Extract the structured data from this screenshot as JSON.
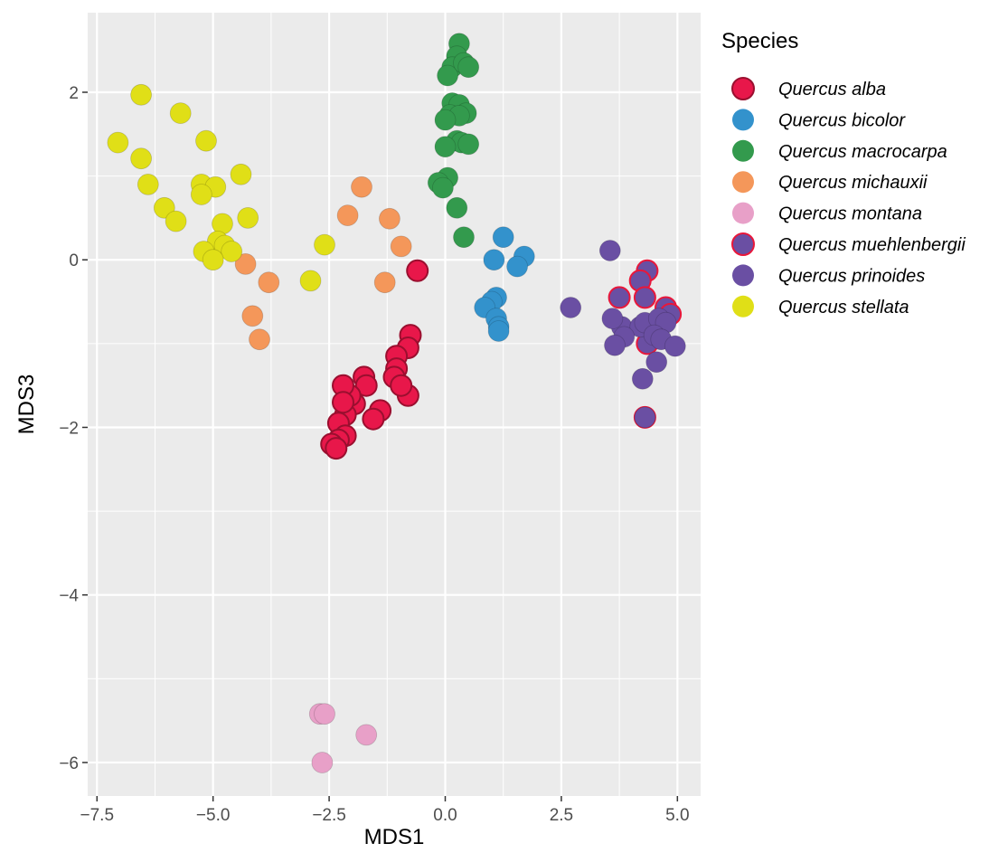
{
  "chart_data": {
    "type": "scatter",
    "xlabel": "MDS1",
    "ylabel": "MDS3",
    "xlim": [
      -7.7,
      5.5
    ],
    "ylim": [
      -6.4,
      2.95
    ],
    "x_ticks": [
      -7.5,
      -5.0,
      -2.5,
      0.0,
      2.5,
      5.0
    ],
    "x_tick_labels": [
      "−7.5",
      "−5.0",
      "−2.5",
      "0.0",
      "2.5",
      "5.0"
    ],
    "y_ticks": [
      2,
      0,
      -2,
      -4,
      -6
    ],
    "y_tick_labels": [
      "2",
      "0",
      "−2",
      "−4",
      "−6"
    ],
    "grid": true,
    "legend_title": "Species",
    "legend_position": "right",
    "series": [
      {
        "name": "Quercus alba",
        "color": "#e8174a",
        "outline": "#9a0f2f",
        "points": [
          [
            -0.6,
            -0.13
          ],
          [
            -0.75,
            -0.9
          ],
          [
            -0.8,
            -1.05
          ],
          [
            -1.05,
            -1.15
          ],
          [
            -1.05,
            -1.3
          ],
          [
            -1.1,
            -1.4
          ],
          [
            -0.8,
            -1.62
          ],
          [
            -0.95,
            -1.5
          ],
          [
            -1.4,
            -1.8
          ],
          [
            -1.55,
            -1.9
          ],
          [
            -1.75,
            -1.4
          ],
          [
            -1.7,
            -1.5
          ],
          [
            -1.95,
            -1.72
          ],
          [
            -2.05,
            -1.62
          ],
          [
            -2.15,
            -1.85
          ],
          [
            -2.2,
            -1.5
          ],
          [
            -2.2,
            -1.7
          ],
          [
            -2.3,
            -1.95
          ],
          [
            -2.15,
            -2.1
          ],
          [
            -2.3,
            -2.15
          ],
          [
            -2.45,
            -2.2
          ],
          [
            -2.35,
            -2.25
          ]
        ]
      },
      {
        "name": "Quercus bicolor",
        "color": "#3392cc",
        "points": [
          [
            1.25,
            0.27
          ],
          [
            1.7,
            0.04
          ],
          [
            1.55,
            -0.08
          ],
          [
            1.05,
            0.0
          ],
          [
            1.1,
            -0.45
          ],
          [
            1.0,
            -0.5
          ],
          [
            0.85,
            -0.57
          ],
          [
            1.1,
            -0.7
          ],
          [
            1.15,
            -0.8
          ],
          [
            1.15,
            -0.85
          ]
        ]
      },
      {
        "name": "Quercus macrocarpa",
        "color": "#339a4d",
        "points": [
          [
            0.3,
            2.58
          ],
          [
            0.25,
            2.43
          ],
          [
            0.15,
            2.3
          ],
          [
            0.05,
            2.2
          ],
          [
            0.4,
            2.35
          ],
          [
            0.5,
            2.3
          ],
          [
            0.15,
            1.87
          ],
          [
            0.3,
            1.85
          ],
          [
            0.45,
            1.75
          ],
          [
            0.1,
            1.73
          ],
          [
            0.3,
            1.72
          ],
          [
            0.0,
            1.67
          ],
          [
            0.25,
            1.42
          ],
          [
            0.35,
            1.4
          ],
          [
            0.5,
            1.38
          ],
          [
            0.0,
            1.35
          ],
          [
            0.05,
            0.98
          ],
          [
            -0.15,
            0.92
          ],
          [
            -0.05,
            0.86
          ],
          [
            0.25,
            0.62
          ],
          [
            0.4,
            0.27
          ]
        ]
      },
      {
        "name": "Quercus michauxii",
        "color": "#f4975a",
        "points": [
          [
            -1.8,
            0.87
          ],
          [
            -2.1,
            0.53
          ],
          [
            -1.2,
            0.49
          ],
          [
            -0.95,
            0.16
          ],
          [
            -1.3,
            -0.27
          ],
          [
            -4.3,
            -0.05
          ],
          [
            -3.8,
            -0.27
          ],
          [
            -4.15,
            -0.67
          ],
          [
            -4.0,
            -0.95
          ]
        ]
      },
      {
        "name": "Quercus montana",
        "color": "#e8a0c8",
        "points": [
          [
            -2.7,
            -5.42
          ],
          [
            -2.6,
            -5.42
          ],
          [
            -1.7,
            -5.67
          ],
          [
            -2.65,
            -6.0
          ]
        ]
      },
      {
        "name": "Quercus muehlenbergii",
        "color": "#6a4fa3",
        "outline": "#e8173a",
        "points": [
          [
            4.35,
            -0.13
          ],
          [
            4.2,
            -0.25
          ],
          [
            4.75,
            -0.57
          ],
          [
            3.75,
            -0.45
          ],
          [
            4.3,
            -0.45
          ],
          [
            4.85,
            -0.65
          ],
          [
            4.45,
            -0.9
          ],
          [
            4.35,
            -1.0
          ],
          [
            4.3,
            -1.88
          ]
        ]
      },
      {
        "name": "Quercus prinoides",
        "color": "#6a4fa3",
        "points": [
          [
            3.55,
            0.11
          ],
          [
            2.7,
            -0.57
          ],
          [
            3.8,
            -0.8
          ],
          [
            3.6,
            -0.7
          ],
          [
            4.2,
            -0.8
          ],
          [
            4.3,
            -0.75
          ],
          [
            4.6,
            -0.7
          ],
          [
            4.75,
            -0.75
          ],
          [
            3.85,
            -0.92
          ],
          [
            4.5,
            -0.9
          ],
          [
            4.65,
            -0.95
          ],
          [
            3.65,
            -1.02
          ],
          [
            4.95,
            -1.03
          ],
          [
            4.55,
            -1.22
          ],
          [
            4.25,
            -1.42
          ],
          [
            4.3,
            -1.88
          ]
        ]
      },
      {
        "name": "Quercus stellata",
        "color": "#e0df17",
        "points": [
          [
            -6.55,
            1.97
          ],
          [
            -5.7,
            1.75
          ],
          [
            -7.05,
            1.4
          ],
          [
            -5.15,
            1.42
          ],
          [
            -6.55,
            1.21
          ],
          [
            -4.4,
            1.02
          ],
          [
            -6.4,
            0.9
          ],
          [
            -5.25,
            0.9
          ],
          [
            -4.95,
            0.87
          ],
          [
            -5.25,
            0.78
          ],
          [
            -6.05,
            0.62
          ],
          [
            -5.8,
            0.46
          ],
          [
            -4.8,
            0.43
          ],
          [
            -4.25,
            0.5
          ],
          [
            -4.9,
            0.22
          ],
          [
            -4.75,
            0.17
          ],
          [
            -4.6,
            0.1
          ],
          [
            -5.2,
            0.1
          ],
          [
            -5.0,
            0.0
          ],
          [
            -2.6,
            0.18
          ],
          [
            -2.9,
            -0.25
          ]
        ]
      }
    ]
  }
}
